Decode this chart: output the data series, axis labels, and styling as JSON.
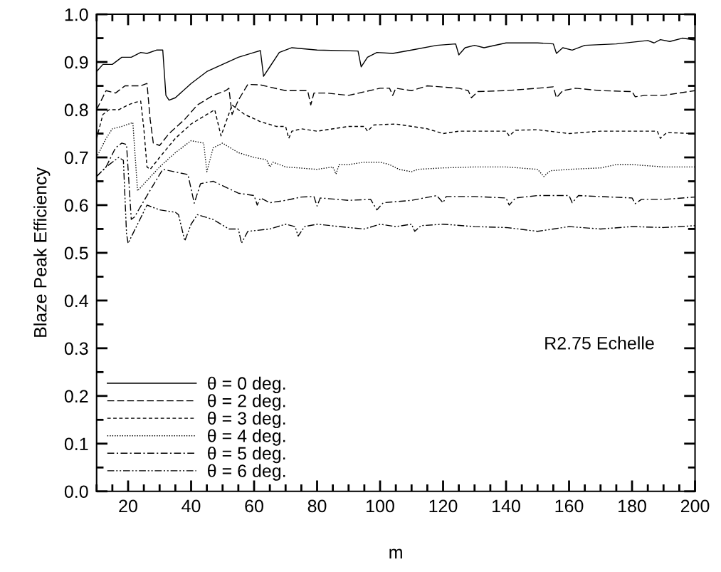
{
  "chart_data": {
    "type": "line",
    "xlabel": "m",
    "ylabel": "Blaze Peak Efficiency",
    "annotations": [
      "R2.75 Echelle"
    ],
    "legend": "bottom left",
    "grid": false,
    "marker": "none",
    "xlim": [
      10,
      200
    ],
    "ylim": [
      0.0,
      1.0
    ],
    "xticks": [
      {
        "value": 10,
        "label": null
      },
      {
        "value": 15,
        "label": null
      },
      20,
      {
        "value": 25,
        "label": null
      },
      {
        "value": 30,
        "label": null
      },
      {
        "value": 35,
        "label": null
      },
      40,
      {
        "value": 45,
        "label": null
      },
      {
        "value": 50,
        "label": null
      },
      {
        "value": 55,
        "label": null
      },
      60,
      {
        "value": 65,
        "label": null
      },
      {
        "value": 70,
        "label": null
      },
      {
        "value": 75,
        "label": null
      },
      80,
      {
        "value": 85,
        "label": null
      },
      {
        "value": 90,
        "label": null
      },
      {
        "value": 95,
        "label": null
      },
      100,
      {
        "value": 105,
        "label": null
      },
      {
        "value": 110,
        "label": null
      },
      {
        "value": 115,
        "label": null
      },
      120,
      {
        "value": 125,
        "label": null
      },
      {
        "value": 130,
        "label": null
      },
      {
        "value": 135,
        "label": null
      },
      140,
      {
        "value": 145,
        "label": null
      },
      {
        "value": 150,
        "label": null
      },
      {
        "value": 155,
        "label": null
      },
      160,
      {
        "value": 165,
        "label": null
      },
      {
        "value": 170,
        "label": null
      },
      {
        "value": 175,
        "label": null
      },
      180,
      {
        "value": 185,
        "label": null
      },
      {
        "value": 190,
        "label": null
      },
      {
        "value": 195,
        "label": null
      },
      200
    ],
    "yticks": [
      {
        "value": 0.0,
        "label": "0.0"
      },
      {
        "value": 0.05,
        "label": null
      },
      0.1,
      {
        "value": 0.15,
        "label": null
      },
      0.2,
      {
        "value": 0.25,
        "label": null
      },
      0.3,
      {
        "value": 0.35,
        "label": null
      },
      0.4,
      {
        "value": 0.45,
        "label": null
      },
      0.5,
      {
        "value": 0.55,
        "label": null
      },
      0.6,
      {
        "value": 0.65,
        "label": null
      },
      0.7,
      {
        "value": 0.75,
        "label": null
      },
      0.8,
      {
        "value": 0.85,
        "label": null
      },
      0.9,
      {
        "value": 0.95,
        "label": null
      },
      {
        "value": 1.0,
        "label": "1.0"
      }
    ],
    "series": [
      {
        "name": "θ = 0 deg.",
        "color": "#000000",
        "line_style": "solid",
        "x": [
          10,
          12,
          15,
          18,
          21,
          24,
          26,
          29,
          31,
          32,
          33,
          35,
          40,
          45,
          50,
          55,
          60,
          62,
          63,
          65,
          68,
          72,
          80,
          93,
          94,
          96,
          99,
          104,
          110,
          118,
          124,
          125,
          127,
          130,
          133,
          140,
          150,
          155,
          156,
          158,
          161,
          165,
          175,
          185,
          187,
          189,
          192,
          196,
          200
        ],
        "values": [
          0.88,
          0.895,
          0.895,
          0.91,
          0.91,
          0.92,
          0.918,
          0.925,
          0.925,
          0.83,
          0.82,
          0.825,
          0.855,
          0.88,
          0.895,
          0.91,
          0.92,
          0.924,
          0.87,
          0.89,
          0.92,
          0.93,
          0.925,
          0.923,
          0.89,
          0.91,
          0.92,
          0.918,
          0.925,
          0.935,
          0.938,
          0.915,
          0.93,
          0.935,
          0.93,
          0.94,
          0.94,
          0.938,
          0.918,
          0.93,
          0.925,
          0.935,
          0.938,
          0.945,
          0.94,
          0.947,
          0.943,
          0.95,
          0.946
        ]
      },
      {
        "name": "θ = 2 deg.",
        "color": "#000000",
        "line_style": "longdash",
        "x": [
          10,
          13,
          16,
          19,
          22,
          24,
          26,
          27,
          28,
          30,
          33,
          38,
          42,
          47,
          51,
          52,
          53,
          55,
          58,
          62,
          70,
          77,
          78,
          79,
          83,
          90,
          100,
          103,
          104,
          105,
          110,
          115,
          125,
          128,
          129,
          131,
          140,
          150,
          155,
          156,
          158,
          162,
          170,
          180,
          181,
          184,
          190,
          200
        ],
        "values": [
          0.8,
          0.84,
          0.835,
          0.85,
          0.85,
          0.85,
          0.855,
          0.78,
          0.73,
          0.725,
          0.75,
          0.78,
          0.81,
          0.83,
          0.84,
          0.845,
          0.79,
          0.82,
          0.853,
          0.852,
          0.84,
          0.84,
          0.81,
          0.835,
          0.835,
          0.83,
          0.845,
          0.845,
          0.83,
          0.845,
          0.84,
          0.85,
          0.845,
          0.84,
          0.825,
          0.838,
          0.84,
          0.845,
          0.848,
          0.825,
          0.84,
          0.845,
          0.84,
          0.838,
          0.827,
          0.83,
          0.83,
          0.84
        ]
      },
      {
        "name": "θ = 3 deg.",
        "color": "#000000",
        "line_style": "dashed",
        "x": [
          10,
          12,
          14,
          17,
          20,
          22,
          24,
          25,
          26,
          27,
          30,
          35,
          40,
          45,
          47.5,
          49.5,
          53,
          57,
          62,
          67,
          70,
          71,
          72,
          75,
          80,
          90,
          95,
          96,
          98,
          105,
          115,
          120,
          125,
          130,
          140,
          141,
          143,
          150,
          160,
          170,
          188,
          189,
          191,
          200
        ],
        "values": [
          0.74,
          0.79,
          0.8,
          0.8,
          0.81,
          0.815,
          0.818,
          0.76,
          0.68,
          0.675,
          0.7,
          0.74,
          0.77,
          0.79,
          0.8,
          0.745,
          0.81,
          0.79,
          0.775,
          0.765,
          0.765,
          0.74,
          0.755,
          0.76,
          0.755,
          0.765,
          0.765,
          0.755,
          0.768,
          0.77,
          0.76,
          0.75,
          0.755,
          0.755,
          0.755,
          0.745,
          0.757,
          0.758,
          0.75,
          0.755,
          0.755,
          0.74,
          0.752,
          0.75
        ]
      },
      {
        "name": "θ = 4 deg.",
        "color": "#000000",
        "line_style": "dotted",
        "x": [
          10,
          13,
          15,
          18,
          21.5,
          23,
          30,
          35,
          40,
          44,
          45,
          47,
          50,
          55,
          60,
          64,
          65,
          66,
          70,
          80,
          85,
          86,
          87,
          90,
          95,
          100,
          103,
          106,
          110,
          112,
          120,
          130,
          140,
          150,
          152,
          154,
          160,
          170,
          175,
          180,
          190,
          200
        ],
        "values": [
          0.7,
          0.74,
          0.76,
          0.765,
          0.773,
          0.63,
          0.68,
          0.71,
          0.735,
          0.73,
          0.67,
          0.72,
          0.73,
          0.71,
          0.7,
          0.695,
          0.68,
          0.69,
          0.68,
          0.675,
          0.68,
          0.665,
          0.685,
          0.685,
          0.69,
          0.69,
          0.685,
          0.675,
          0.67,
          0.675,
          0.678,
          0.68,
          0.68,
          0.675,
          0.66,
          0.672,
          0.675,
          0.678,
          0.685,
          0.685,
          0.68,
          0.68
        ]
      },
      {
        "name": "θ = 5 deg.",
        "color": "#000000",
        "line_style": "dashdot",
        "x": [
          10,
          13,
          16,
          18,
          19.5,
          21,
          22,
          26,
          31,
          39,
          41,
          43,
          47,
          55,
          60,
          61,
          62,
          65,
          70,
          75,
          79,
          80,
          81,
          90,
          97,
          99,
          101,
          110,
          118,
          120,
          121,
          130,
          140,
          141,
          143,
          150,
          160,
          161,
          163,
          170,
          180,
          181,
          183,
          190,
          200
        ],
        "values": [
          0.66,
          0.68,
          0.72,
          0.73,
          0.727,
          0.57,
          0.575,
          0.62,
          0.675,
          0.664,
          0.604,
          0.645,
          0.65,
          0.625,
          0.62,
          0.6,
          0.615,
          0.605,
          0.61,
          0.617,
          0.618,
          0.598,
          0.615,
          0.61,
          0.612,
          0.59,
          0.605,
          0.61,
          0.62,
          0.605,
          0.618,
          0.618,
          0.615,
          0.6,
          0.615,
          0.62,
          0.62,
          0.605,
          0.62,
          0.618,
          0.615,
          0.603,
          0.612,
          0.612,
          0.617
        ]
      },
      {
        "name": "θ = 6 deg.",
        "color": "#000000",
        "line_style": "dashdotdot",
        "x": [
          10,
          13,
          17,
          18.5,
          19.5,
          20,
          23,
          26,
          30,
          35,
          36,
          38,
          40,
          42,
          47,
          52,
          55,
          56,
          58,
          65,
          70,
          73,
          74,
          76,
          80,
          90,
          95,
          100,
          105,
          110,
          111,
          113,
          120,
          130,
          140,
          144,
          150,
          155,
          160,
          170,
          180,
          190,
          200
        ],
        "values": [
          0.66,
          0.68,
          0.7,
          0.694,
          0.54,
          0.52,
          0.56,
          0.6,
          0.59,
          0.585,
          0.58,
          0.525,
          0.56,
          0.58,
          0.57,
          0.55,
          0.55,
          0.52,
          0.545,
          0.55,
          0.56,
          0.555,
          0.535,
          0.555,
          0.56,
          0.553,
          0.55,
          0.56,
          0.555,
          0.56,
          0.545,
          0.557,
          0.56,
          0.555,
          0.553,
          0.55,
          0.545,
          0.55,
          0.555,
          0.55,
          0.555,
          0.553,
          0.557
        ]
      }
    ]
  }
}
